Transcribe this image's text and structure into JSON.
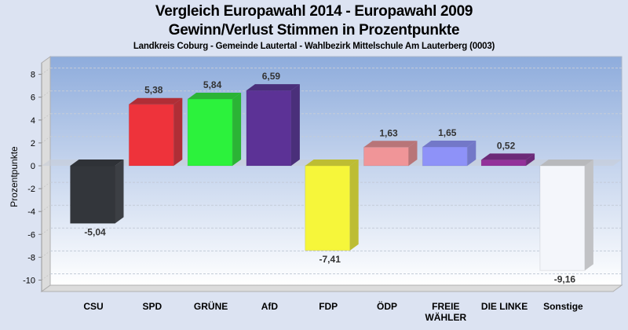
{
  "header": {
    "title_line1": "Vergleich Europawahl 2014 - Europawahl 2009",
    "title_line2": "Gewinn/Verlust Stimmen in Prozentpunkte",
    "subtitle": "Landkreis Coburg - Gemeinde Lautertal - Wahlbezirk Mittelschule Am Lauterberg (0003)"
  },
  "chart_data": {
    "type": "bar",
    "title": "Vergleich Europawahl 2014 - Europawahl 2009",
    "subtitle": "Gewinn/Verlust Stimmen in Prozentpunkte",
    "caption": "Landkreis Coburg - Gemeinde Lautertal - Wahlbezirk Mittelschule Am Lauterberg (0003)",
    "xlabel": "",
    "ylabel": "Prozentpunkte",
    "ylim": [
      -11,
      9
    ],
    "yticks": [
      8,
      6,
      4,
      2,
      0,
      -2,
      -4,
      -6,
      -8,
      -10
    ],
    "grid": true,
    "style": "3d",
    "categories": [
      [
        "CSU"
      ],
      [
        "SPD"
      ],
      [
        "GRÜNE"
      ],
      [
        "AfD"
      ],
      [
        "FDP"
      ],
      [
        "ÖDP"
      ],
      [
        "FREIE",
        "WÄHLER"
      ],
      [
        "DIE LINKE"
      ],
      [
        "Sonstige"
      ]
    ],
    "values": [
      -5.04,
      5.38,
      5.84,
      6.59,
      -7.41,
      1.63,
      1.65,
      0.52,
      -9.16
    ],
    "value_labels": [
      "-5,04",
      "5,38",
      "5,84",
      "6,59",
      "-7,41",
      "1,63",
      "1,65",
      "0,52",
      "-9,16"
    ],
    "colors": [
      "#33363b",
      "#ee333b",
      "#2cf23c",
      "#5c3296",
      "#f6f63a",
      "#f09598",
      "#8e92f8",
      "#93309a",
      "#f4f6fb"
    ],
    "side_colors": [
      "#3c3f44",
      "#b02e36",
      "#2bb435",
      "#4a2f7a",
      "#bdbd33",
      "#b87578",
      "#7378c8",
      "#6c2a78",
      "#c1c2c5"
    ],
    "top_colors": [
      "#2f3237",
      "#b02e36",
      "#2bb435",
      "#4a2f7a",
      "#bdbd33",
      "#b87578",
      "#7378c8",
      "#6c2a78",
      "#b8b9bc"
    ]
  }
}
